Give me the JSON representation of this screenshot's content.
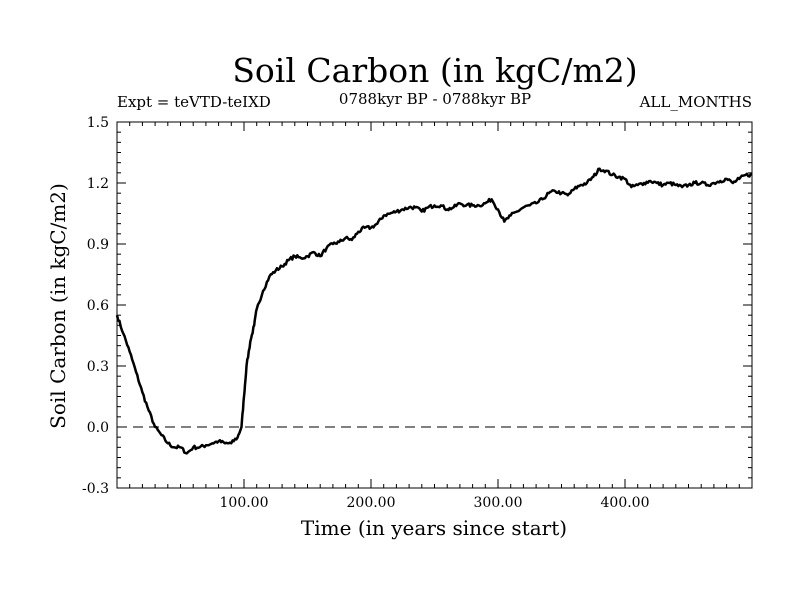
{
  "chart_data": {
    "type": "line",
    "title": "Soil Carbon (in kgC/m2)",
    "subtitle_left": "Expt = teVTD-teIXD",
    "subtitle_center": "0788kyr BP - 0788kyr BP",
    "subtitle_right": "ALL_MONTHS",
    "xlabel": "Time (in years since start)",
    "ylabel": "Soil Carbon (in kgC/m2)",
    "xlim": [
      0,
      500
    ],
    "ylim": [
      -0.3,
      1.5
    ],
    "x_ticks": [
      100,
      200,
      300,
      400
    ],
    "x_tick_labels": [
      "100.00",
      "200.00",
      "300.00",
      "400.00"
    ],
    "y_ticks": [
      -0.3,
      0.0,
      0.3,
      0.6,
      0.9,
      1.2,
      1.5
    ],
    "y_tick_labels": [
      "-0.3",
      "0.0",
      "0.3",
      "0.6",
      "0.9",
      "1.2",
      "1.5"
    ],
    "reference_line": {
      "y": 0.0,
      "style": "dashed"
    },
    "series": [
      {
        "x": [
          0,
          5,
          10,
          15,
          20,
          25,
          30,
          35,
          40,
          45,
          50,
          55,
          60,
          65,
          70,
          75,
          80,
          85,
          90,
          95,
          98,
          100,
          102,
          105,
          108,
          110,
          115,
          120,
          125,
          130,
          135,
          140,
          145,
          150,
          155,
          160,
          165,
          170,
          175,
          180,
          185,
          190,
          195,
          200,
          205,
          210,
          215,
          220,
          225,
          230,
          235,
          240,
          245,
          250,
          255,
          260,
          265,
          270,
          275,
          280,
          285,
          290,
          295,
          300,
          305,
          310,
          315,
          320,
          325,
          330,
          335,
          340,
          345,
          350,
          355,
          360,
          365,
          370,
          375,
          380,
          385,
          390,
          395,
          400,
          405,
          410,
          415,
          420,
          425,
          430,
          435,
          440,
          445,
          450,
          455,
          460,
          465,
          470,
          475,
          480,
          485,
          490,
          495,
          500
        ],
        "y": [
          0.55,
          0.46,
          0.37,
          0.27,
          0.17,
          0.08,
          0.0,
          -0.04,
          -0.08,
          -0.1,
          -0.1,
          -0.13,
          -0.1,
          -0.1,
          -0.09,
          -0.08,
          -0.07,
          -0.08,
          -0.08,
          -0.05,
          0.0,
          0.15,
          0.3,
          0.42,
          0.5,
          0.58,
          0.67,
          0.74,
          0.77,
          0.79,
          0.82,
          0.84,
          0.83,
          0.84,
          0.86,
          0.84,
          0.88,
          0.9,
          0.91,
          0.93,
          0.92,
          0.96,
          0.98,
          0.98,
          1.0,
          1.04,
          1.05,
          1.06,
          1.07,
          1.08,
          1.08,
          1.06,
          1.08,
          1.09,
          1.09,
          1.07,
          1.08,
          1.1,
          1.09,
          1.09,
          1.09,
          1.1,
          1.12,
          1.07,
          1.01,
          1.04,
          1.06,
          1.08,
          1.09,
          1.1,
          1.12,
          1.15,
          1.16,
          1.15,
          1.14,
          1.17,
          1.19,
          1.2,
          1.23,
          1.27,
          1.26,
          1.24,
          1.23,
          1.22,
          1.18,
          1.19,
          1.2,
          1.21,
          1.2,
          1.19,
          1.2,
          1.19,
          1.18,
          1.19,
          1.2,
          1.2,
          1.19,
          1.2,
          1.21,
          1.22,
          1.2,
          1.22,
          1.24,
          1.24
        ]
      }
    ]
  }
}
